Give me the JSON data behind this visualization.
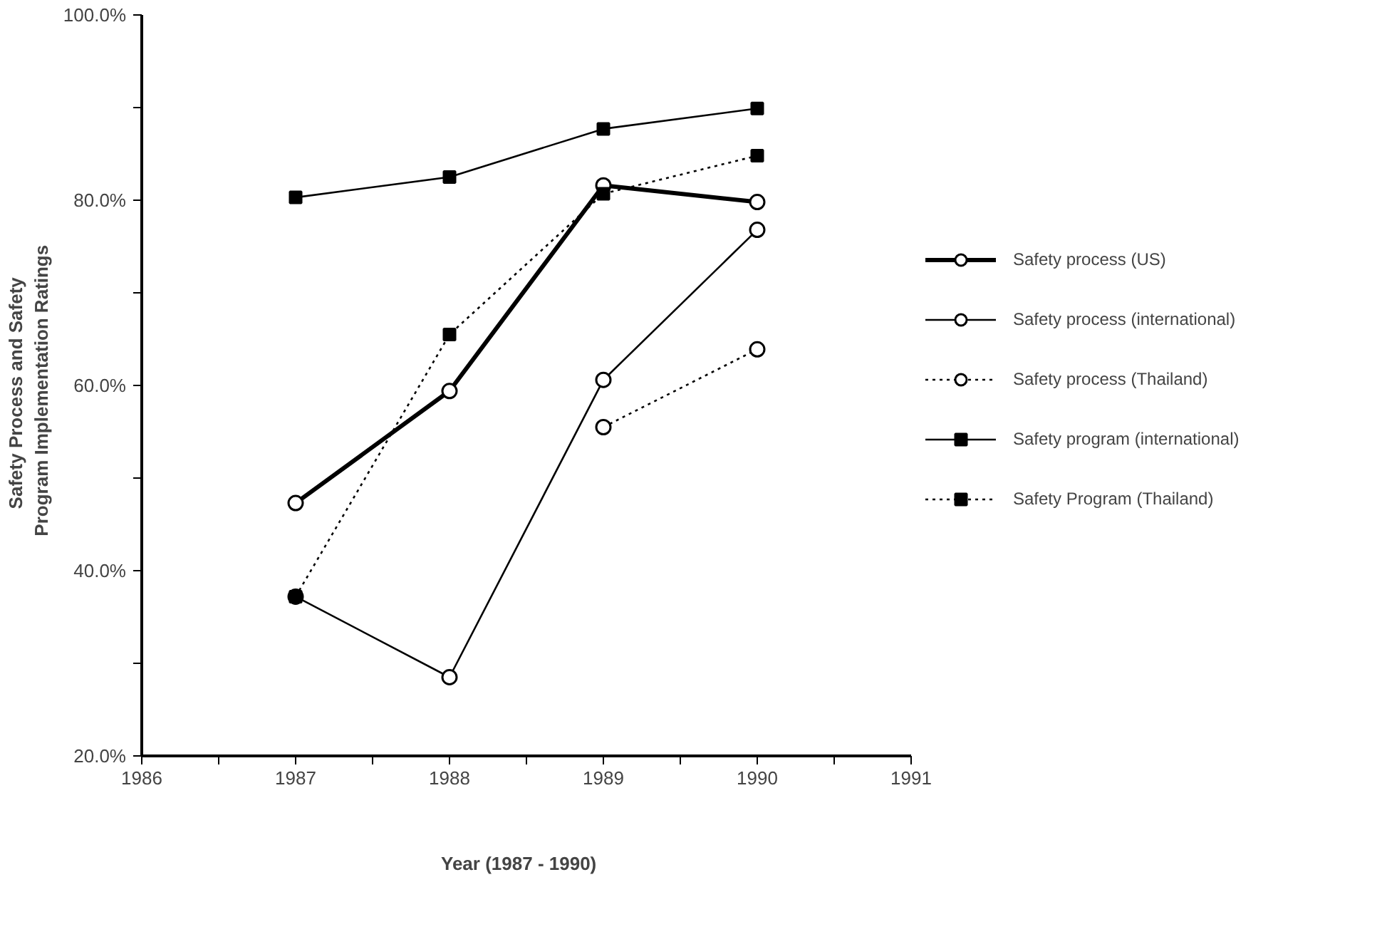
{
  "chart_data": {
    "type": "line",
    "xlabel": "Year  (1987  -  1990)",
    "ylabel": "Safety  Process  and  Safety\nProgram  Implementation  Ratings",
    "x": [
      1987,
      1988,
      1989,
      1990
    ],
    "xlim": [
      1986,
      1991
    ],
    "xticks": [
      1986,
      {
        "value": 1986.5,
        "label": null
      },
      1987,
      {
        "value": 1987.5,
        "label": null
      },
      1988,
      {
        "value": 1988.5,
        "label": null
      },
      1989,
      {
        "value": 1989.5,
        "label": null
      },
      1990,
      {
        "value": 1990.5,
        "label": null
      },
      1991
    ],
    "ylim": [
      20,
      100
    ],
    "yticks": [
      {
        "value": 20,
        "label": "20.0%"
      },
      {
        "value": 30,
        "label": null
      },
      {
        "value": 40,
        "label": "40.0%"
      },
      {
        "value": 50,
        "label": null
      },
      {
        "value": 60,
        "label": "60.0%"
      },
      {
        "value": 70,
        "label": null
      },
      {
        "value": 80,
        "label": "80.0%"
      },
      {
        "value": 90,
        "label": null
      },
      {
        "value": 100,
        "label": "100.0%"
      }
    ],
    "grid": false,
    "legend": "right",
    "series": [
      {
        "name": "Safety process (US)",
        "color": "#000000",
        "values": [
          47.3,
          59.4,
          81.6,
          79.8
        ],
        "marker": "circle",
        "line_style": "solid"
      },
      {
        "name": "Safety process (international)",
        "color": "#000000",
        "values": [
          37.2,
          28.5,
          60.6,
          76.8
        ],
        "marker": "circle",
        "line_style": "solid"
      },
      {
        "name": "Safety process (Thailand)",
        "color": "#000000",
        "values": [
          null,
          null,
          55.5,
          63.9
        ],
        "marker": "circle",
        "line_style": "dotted"
      },
      {
        "name": "Safety program (international)",
        "color": "#000000",
        "values": [
          80.3,
          82.5,
          87.7,
          89.9
        ],
        "marker": "square",
        "line_style": "solid"
      },
      {
        "name": "Safety Program (Thailand)",
        "color": "#000000",
        "values": [
          37.2,
          65.5,
          80.7,
          84.8
        ],
        "marker": "square",
        "line_style": "dotted"
      }
    ]
  }
}
